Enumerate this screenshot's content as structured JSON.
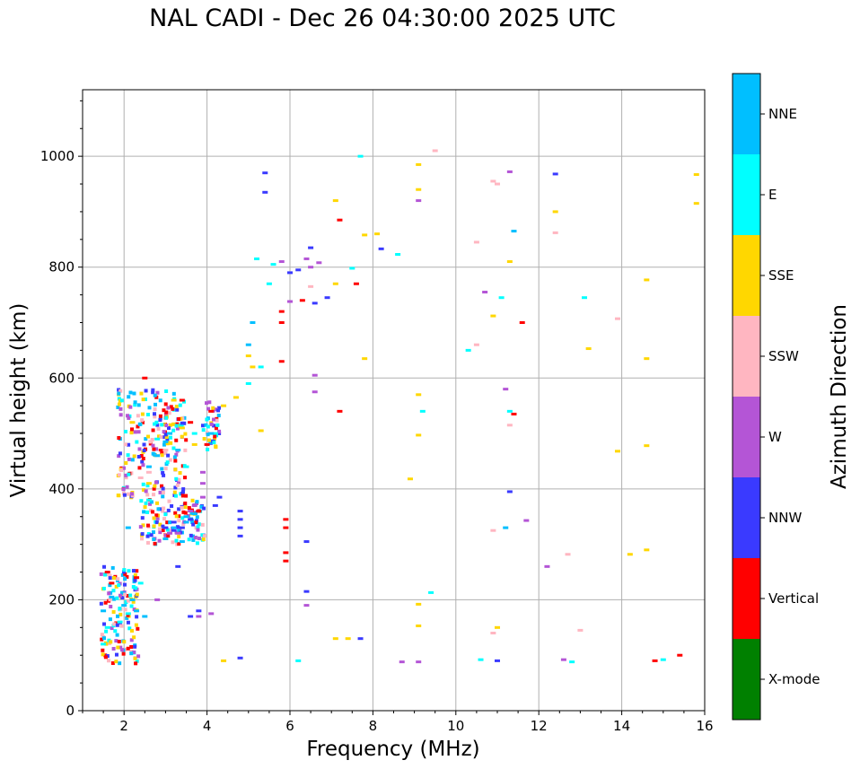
{
  "chart_data": {
    "type": "scatter",
    "title": "NAL CADI - Dec 26 04:30:00 2025 UTC",
    "xlabel": "Frequency (MHz)",
    "ylabel": "Virtual height (km)",
    "xlim": [
      1,
      16
    ],
    "ylim": [
      0,
      1120
    ],
    "xticks": [
      "2",
      "4",
      "6",
      "8",
      "10",
      "12",
      "14",
      "16"
    ],
    "yticks": [
      "0",
      "200",
      "400",
      "600",
      "800",
      "1000"
    ],
    "grid": true,
    "colorbar": {
      "label": "Azimuth Direction",
      "categories": [
        {
          "name": "X-mode",
          "color": "#008000"
        },
        {
          "name": "Vertical",
          "color": "#ff0000"
        },
        {
          "name": "NNW",
          "color": "#3a3aff"
        },
        {
          "name": "W",
          "color": "#b455d6"
        },
        {
          "name": "SSW",
          "color": "#ffb6c1"
        },
        {
          "name": "SSE",
          "color": "#ffd700"
        },
        {
          "name": "E",
          "color": "#00ffff"
        },
        {
          "name": "NNE",
          "color": "#00bfff"
        }
      ]
    },
    "series": [
      {
        "name": "Vertical",
        "points": [
          [
            1.6,
            250
          ],
          [
            1.7,
            230
          ],
          [
            2.3,
            240
          ],
          [
            2.5,
            600
          ],
          [
            2.9,
            470
          ],
          [
            3.4,
            560
          ],
          [
            3.6,
            520
          ],
          [
            3.8,
            360
          ],
          [
            4.0,
            480
          ],
          [
            4.1,
            540
          ],
          [
            5.8,
            720
          ],
          [
            5.8,
            700
          ],
          [
            5.8,
            630
          ],
          [
            6.3,
            740
          ],
          [
            7.2,
            885
          ],
          [
            7.2,
            540
          ],
          [
            7.6,
            770
          ],
          [
            11.4,
            535
          ],
          [
            11.6,
            700
          ],
          [
            15.4,
            100
          ],
          [
            14.8,
            90
          ],
          [
            5.9,
            345
          ],
          [
            5.9,
            330
          ],
          [
            5.9,
            285
          ],
          [
            5.9,
            270
          ]
        ]
      },
      {
        "name": "NNW",
        "points": [
          [
            3.2,
            340
          ],
          [
            3.0,
            330
          ],
          [
            3.2,
            325
          ],
          [
            3.4,
            330
          ],
          [
            3.6,
            345
          ],
          [
            4.3,
            385
          ],
          [
            4.2,
            370
          ],
          [
            3.3,
            260
          ],
          [
            3.6,
            170
          ],
          [
            3.8,
            180
          ],
          [
            4.8,
            360
          ],
          [
            4.8,
            345
          ],
          [
            4.8,
            330
          ],
          [
            4.8,
            315
          ],
          [
            6.4,
            305
          ],
          [
            6.4,
            215
          ],
          [
            5.4,
            970
          ],
          [
            5.4,
            935
          ],
          [
            6.2,
            795
          ],
          [
            6.5,
            835
          ],
          [
            6.0,
            790
          ],
          [
            6.6,
            735
          ],
          [
            6.9,
            745
          ],
          [
            7.7,
            130
          ],
          [
            8.2,
            833
          ],
          [
            11.3,
            395
          ],
          [
            12.4,
            968
          ],
          [
            11.0,
            90
          ],
          [
            4.8,
            95
          ]
        ]
      },
      {
        "name": "W",
        "points": [
          [
            3.3,
            320
          ],
          [
            3.1,
            320
          ],
          [
            3.6,
            360
          ],
          [
            3.7,
            370
          ],
          [
            3.9,
            430
          ],
          [
            3.9,
            410
          ],
          [
            3.9,
            385
          ],
          [
            4.1,
            175
          ],
          [
            3.8,
            170
          ],
          [
            2.8,
            200
          ],
          [
            6.4,
            190
          ],
          [
            6.6,
            605
          ],
          [
            6.6,
            575
          ],
          [
            6.4,
            815
          ],
          [
            6.5,
            800
          ],
          [
            6.7,
            808
          ],
          [
            6.0,
            738
          ],
          [
            8.7,
            88
          ],
          [
            9.1,
            88
          ],
          [
            9.1,
            920
          ],
          [
            10.7,
            755
          ],
          [
            11.2,
            580
          ],
          [
            11.3,
            972
          ],
          [
            11.7,
            343
          ],
          [
            12.2,
            260
          ],
          [
            12.6,
            92
          ],
          [
            5.8,
            810
          ]
        ]
      },
      {
        "name": "SSW",
        "points": [
          [
            2.4,
            420
          ],
          [
            2.6,
            430
          ],
          [
            2.8,
            460
          ],
          [
            3.0,
            470
          ],
          [
            6.5,
            765
          ],
          [
            9.5,
            1010
          ],
          [
            10.5,
            845
          ],
          [
            10.5,
            660
          ],
          [
            10.9,
            955
          ],
          [
            11.0,
            950
          ],
          [
            10.9,
            325
          ],
          [
            12.4,
            862
          ],
          [
            12.7,
            282
          ],
          [
            13.0,
            145
          ],
          [
            13.9,
            707
          ],
          [
            11.3,
            515
          ],
          [
            10.9,
            140
          ]
        ]
      },
      {
        "name": "SSE",
        "points": [
          [
            2.2,
            520
          ],
          [
            2.6,
            410
          ],
          [
            3.2,
            560
          ],
          [
            3.4,
            510
          ],
          [
            3.7,
            480
          ],
          [
            4.4,
            90
          ],
          [
            4.4,
            550
          ],
          [
            4.7,
            565
          ],
          [
            5.3,
            505
          ],
          [
            5.0,
            640
          ],
          [
            5.1,
            620
          ],
          [
            7.1,
            920
          ],
          [
            7.1,
            770
          ],
          [
            7.1,
            130
          ],
          [
            7.4,
            130
          ],
          [
            7.8,
            858
          ],
          [
            8.1,
            860
          ],
          [
            7.8,
            635
          ],
          [
            8.9,
            418
          ],
          [
            9.1,
            985
          ],
          [
            9.1,
            940
          ],
          [
            9.1,
            570
          ],
          [
            9.1,
            497
          ],
          [
            9.1,
            192
          ],
          [
            9.1,
            153
          ],
          [
            10.9,
            712
          ],
          [
            11.0,
            150
          ],
          [
            11.3,
            810
          ],
          [
            12.4,
            900
          ],
          [
            13.2,
            653
          ],
          [
            13.9,
            468
          ],
          [
            14.2,
            282
          ],
          [
            14.6,
            777
          ],
          [
            14.6,
            635
          ],
          [
            14.6,
            478
          ],
          [
            14.6,
            290
          ],
          [
            15.8,
            967
          ],
          [
            15.8,
            915
          ]
        ]
      },
      {
        "name": "E",
        "points": [
          [
            1.5,
            120
          ],
          [
            1.6,
            150
          ],
          [
            1.9,
            160
          ],
          [
            2.1,
            175
          ],
          [
            2.4,
            230
          ],
          [
            2.6,
            380
          ],
          [
            2.8,
            490
          ],
          [
            3.5,
            440
          ],
          [
            3.7,
            500
          ],
          [
            4.2,
            500
          ],
          [
            5.0,
            590
          ],
          [
            5.2,
            815
          ],
          [
            5.3,
            620
          ],
          [
            5.5,
            770
          ],
          [
            5.6,
            805
          ],
          [
            6.2,
            90
          ],
          [
            7.5,
            798
          ],
          [
            7.7,
            1000
          ],
          [
            8.6,
            823
          ],
          [
            9.2,
            540
          ],
          [
            9.4,
            213
          ],
          [
            10.3,
            650
          ],
          [
            10.6,
            92
          ],
          [
            11.1,
            745
          ],
          [
            11.3,
            540
          ],
          [
            13.1,
            745
          ],
          [
            12.8,
            88
          ],
          [
            15.0,
            92
          ]
        ]
      },
      {
        "name": "NNE",
        "points": [
          [
            1.5,
            180
          ],
          [
            1.7,
            205
          ],
          [
            2.0,
            190
          ],
          [
            2.2,
            200
          ],
          [
            2.3,
            180
          ],
          [
            2.5,
            170
          ],
          [
            2.6,
            440
          ],
          [
            2.8,
            460
          ],
          [
            3.0,
            485
          ],
          [
            3.1,
            500
          ],
          [
            3.3,
            470
          ],
          [
            3.2,
            330
          ],
          [
            3.5,
            340
          ],
          [
            3.0,
            310
          ],
          [
            3.4,
            305
          ],
          [
            3.7,
            355
          ],
          [
            3.5,
            350
          ],
          [
            4.1,
            500
          ],
          [
            2.1,
            330
          ],
          [
            5.0,
            660
          ],
          [
            5.1,
            700
          ],
          [
            11.4,
            865
          ],
          [
            11.2,
            330
          ]
        ]
      }
    ],
    "scatter_cloud": [
      {
        "x_range": [
          1.45,
          2.35
        ],
        "y_range": [
          85,
          260
        ],
        "count": 140
      },
      {
        "x_range": [
          1.85,
          3.5
        ],
        "y_range": [
          380,
          580
        ],
        "count": 230
      },
      {
        "x_range": [
          2.4,
          3.95
        ],
        "y_range": [
          300,
          380
        ],
        "count": 130
      },
      {
        "x_range": [
          3.9,
          4.3
        ],
        "y_range": [
          470,
          560
        ],
        "count": 40
      }
    ]
  }
}
